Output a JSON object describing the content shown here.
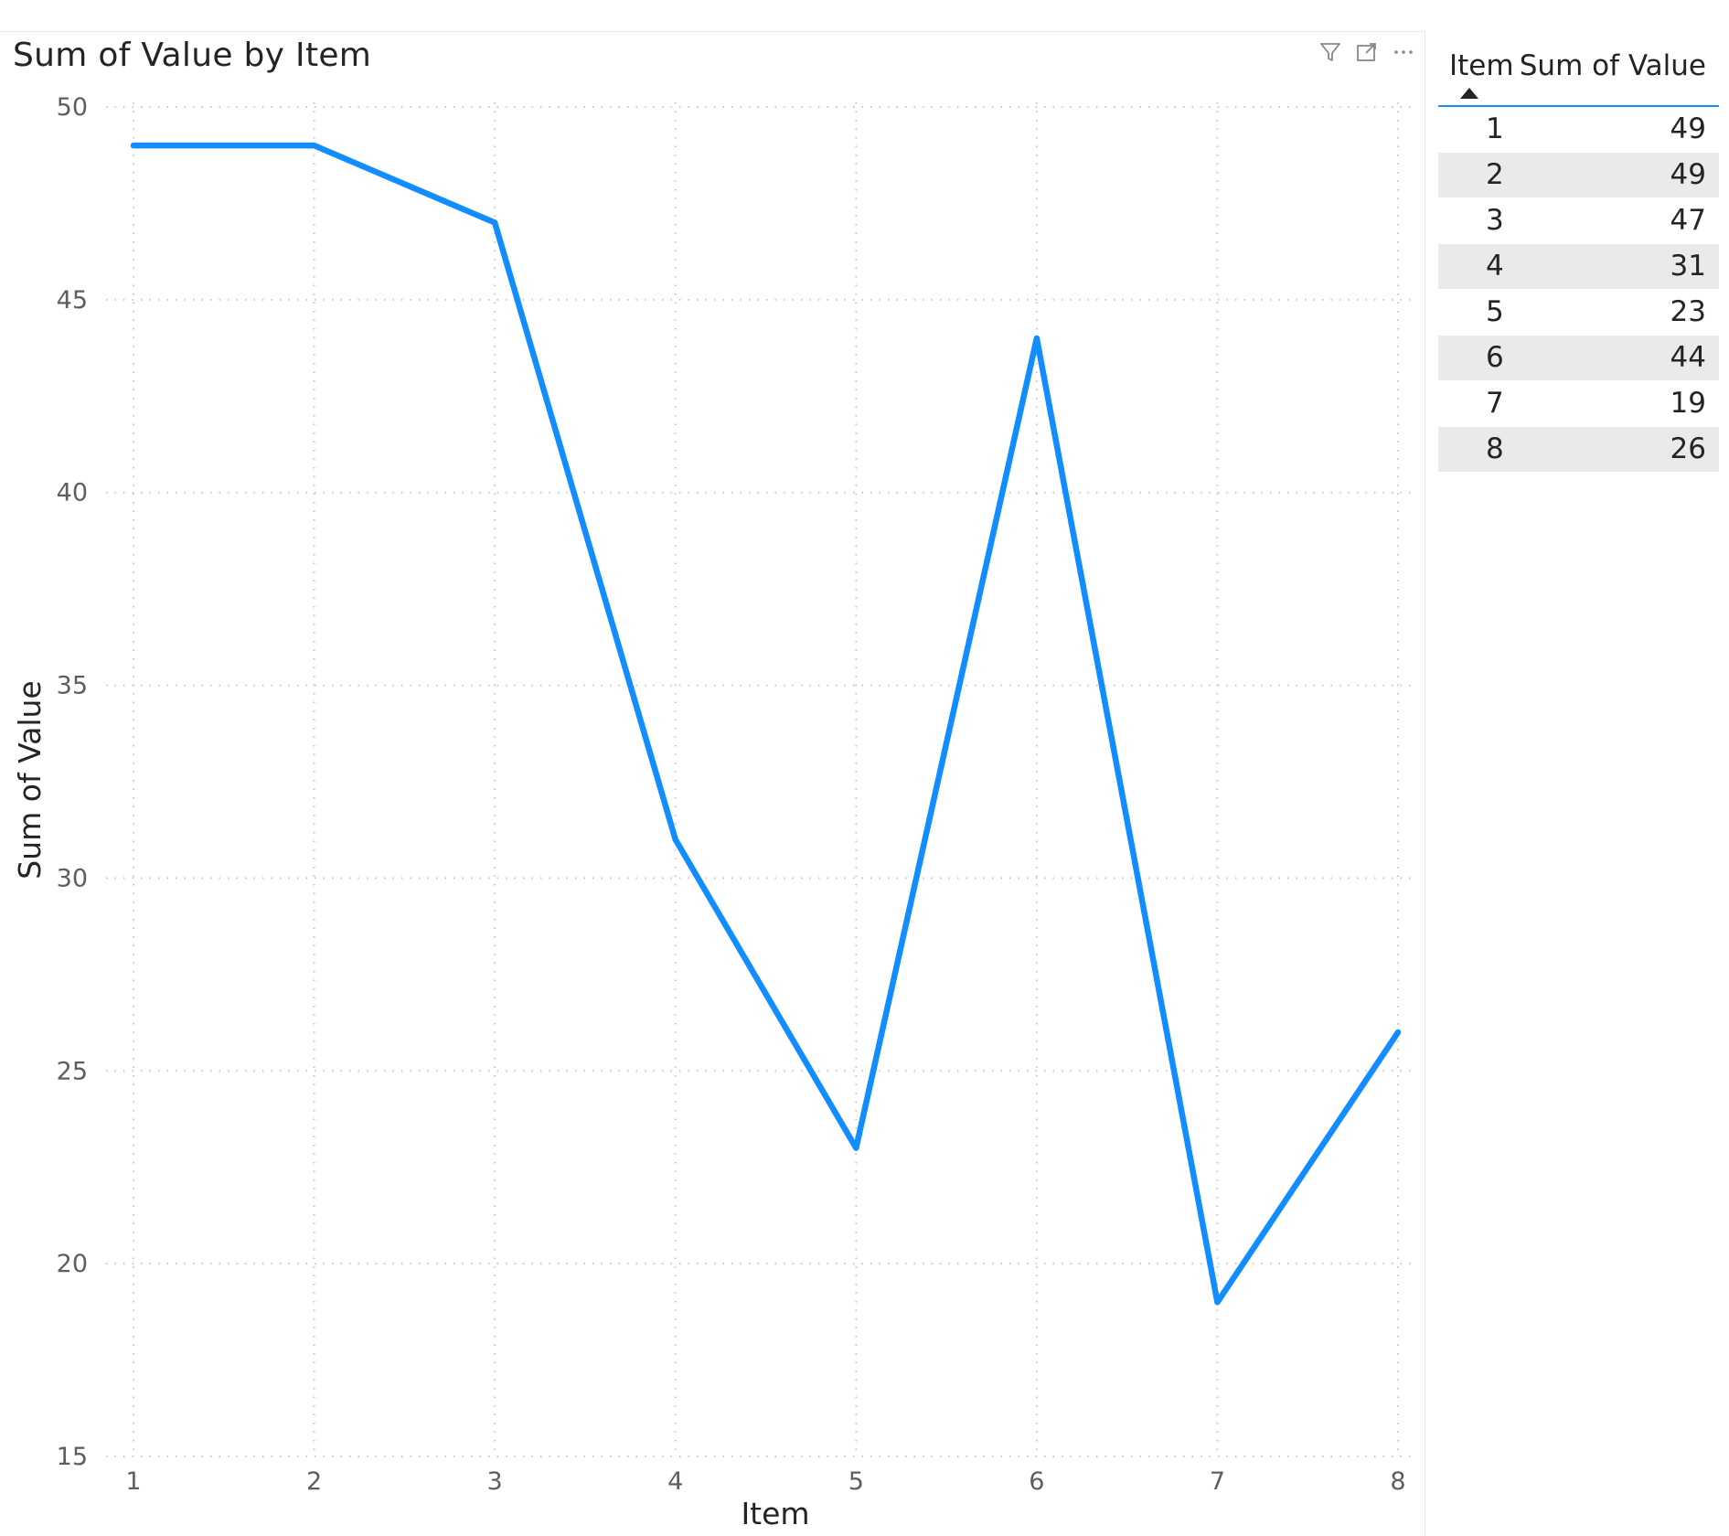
{
  "chart_data": {
    "type": "line",
    "title": "Sum of Value by Item",
    "xlabel": "Item",
    "ylabel": "Sum of Value",
    "x": [
      1,
      2,
      3,
      4,
      5,
      6,
      7,
      8
    ],
    "series": [
      {
        "values": [
          49,
          49,
          47,
          31,
          23,
          44,
          19,
          26
        ],
        "color": "#118DFF"
      }
    ],
    "ylim": [
      15,
      50
    ],
    "yticks": [
      15,
      20,
      25,
      30,
      35,
      40,
      45,
      50
    ],
    "xticks": [
      "1",
      "2",
      "3",
      "4",
      "5",
      "6",
      "7",
      "8"
    ],
    "grid": true,
    "legend": "none"
  },
  "header_icons": [
    "filter-icon",
    "focus-mode-icon",
    "more-options-icon"
  ],
  "table": {
    "columns": [
      "Item",
      "Sum of Value"
    ],
    "sorted_by": "Item",
    "rows": [
      {
        "item": "1",
        "value": "49"
      },
      {
        "item": "2",
        "value": "49"
      },
      {
        "item": "3",
        "value": "47"
      },
      {
        "item": "4",
        "value": "31"
      },
      {
        "item": "5",
        "value": "23"
      },
      {
        "item": "6",
        "value": "44"
      },
      {
        "item": "7",
        "value": "19"
      },
      {
        "item": "8",
        "value": "26"
      }
    ]
  }
}
